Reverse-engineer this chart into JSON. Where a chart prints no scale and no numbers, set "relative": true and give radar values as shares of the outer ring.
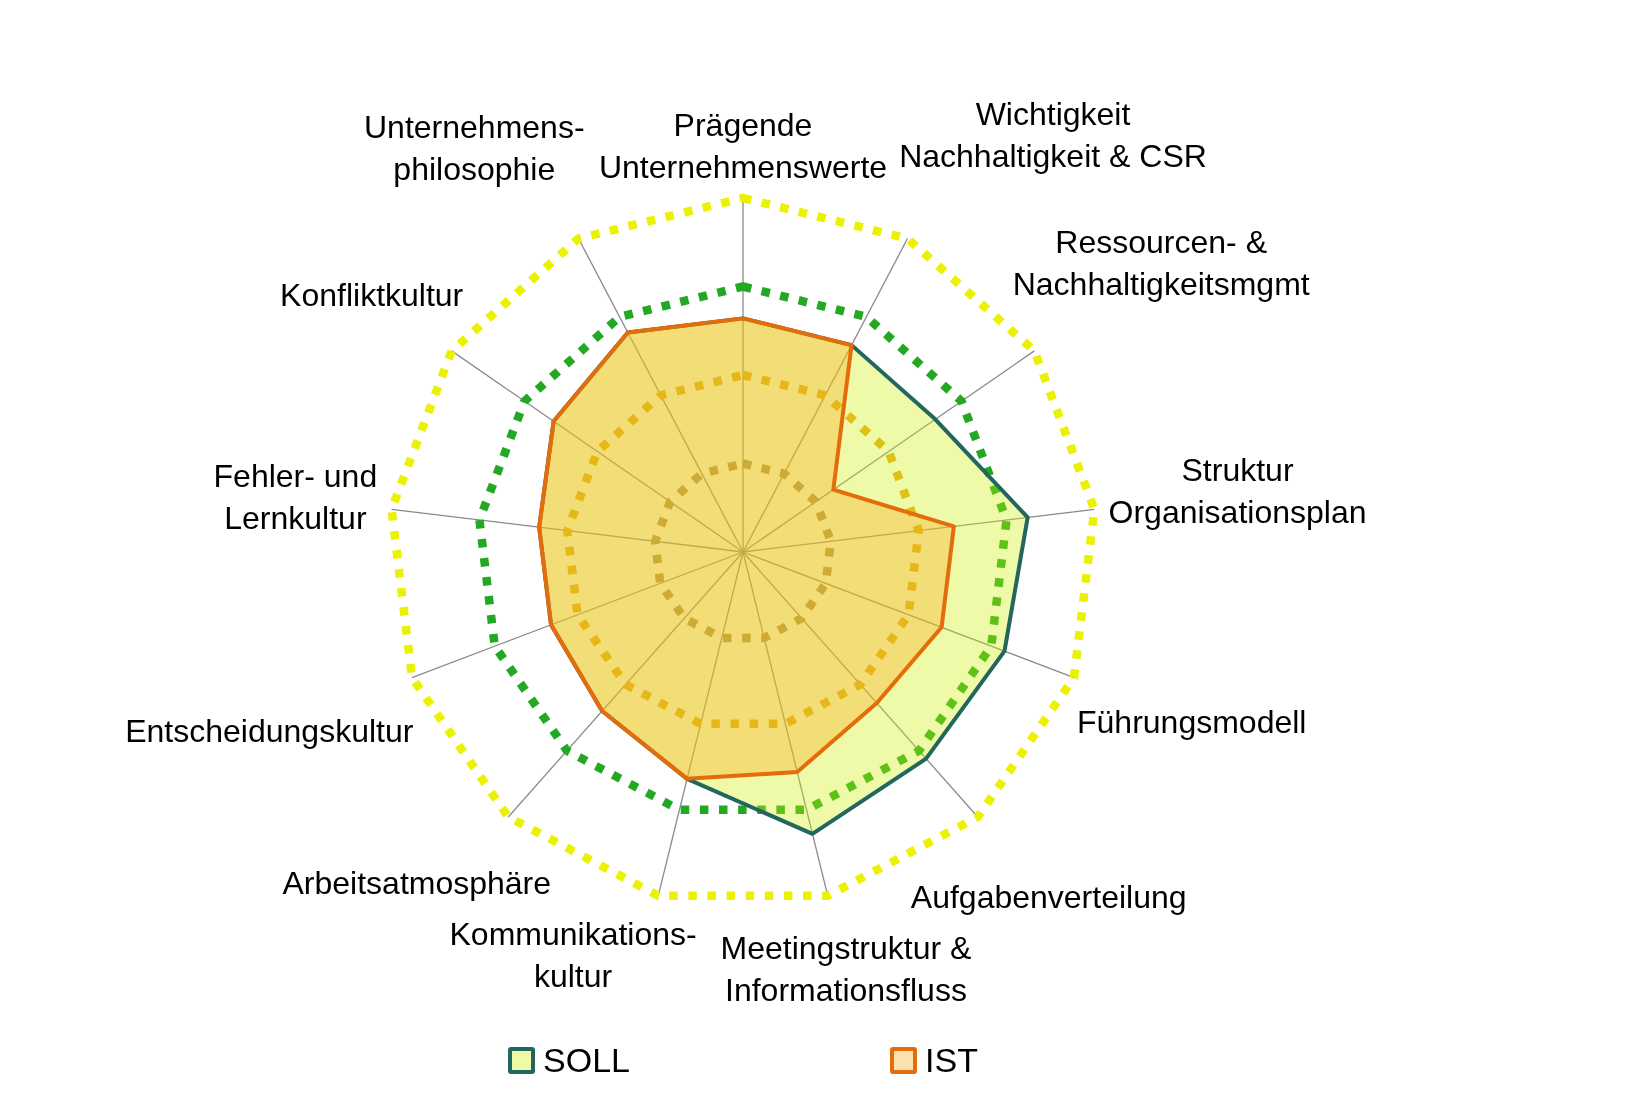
{
  "chart_data": {
    "type": "radar",
    "relative": true,
    "grid": true,
    "legend": "bottom",
    "categories": [
      "Prägende\nUnternehmenswerte",
      "Wichtigkeit\nNachhaltigkeit & CSR",
      "Ressourcen- &\nNachhaltigkeitsmgmt",
      "Struktur\nOrganisationsplan",
      "Führungsmodell",
      "Aufgabenverteilung",
      "Meetingstruktur &\nInformationsfluss",
      "Kommunikations-\nkultur",
      "Arbeitsatmosphäre",
      "Entscheidungskultur",
      "Fehler- und\nLernkultur",
      "Konfliktkultur",
      "Unternehmens-\nphilosophie"
    ],
    "series": [
      {
        "name": "SOLL",
        "color": "#22665f",
        "values": [
          0.66,
          0.66,
          0.66,
          0.81,
          0.79,
          0.78,
          0.82,
          0.66,
          0.6,
          0.58,
          0.58,
          0.65,
          0.7
        ]
      },
      {
        "name": "IST",
        "color": "#e46c0a",
        "values": [
          0.66,
          0.66,
          0.31,
          0.6,
          0.6,
          0.57,
          0.64,
          0.66,
          0.6,
          0.58,
          0.58,
          0.65,
          0.7
        ]
      }
    ]
  }
}
